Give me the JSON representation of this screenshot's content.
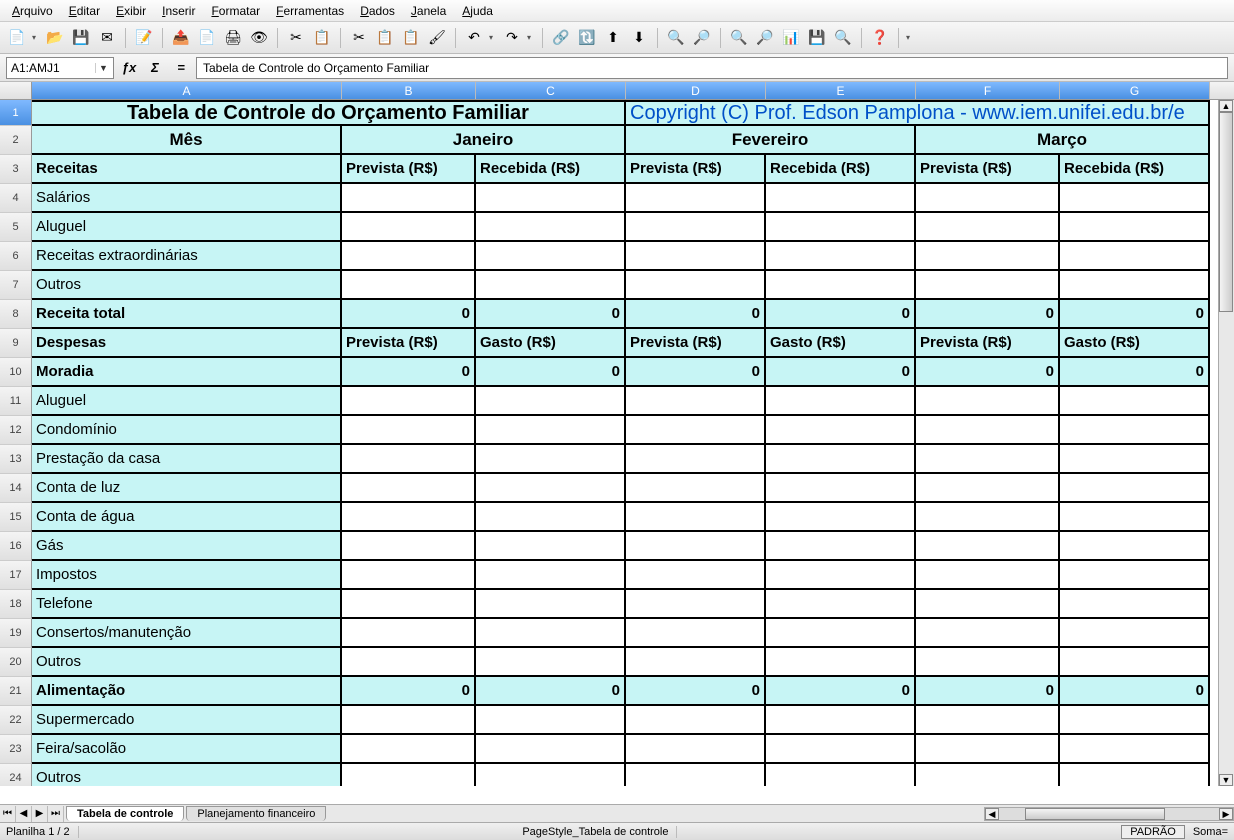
{
  "menu": {
    "items": [
      "Arquivo",
      "Editar",
      "Exibir",
      "Inserir",
      "Formatar",
      "Ferramentas",
      "Dados",
      "Janela",
      "Ajuda"
    ]
  },
  "toolbar_icons": [
    "📄",
    "▾",
    "📂",
    "💾",
    "✉",
    "|",
    "📝",
    "|",
    "📤",
    "📄",
    "🖨",
    "👁",
    "|",
    "✂",
    "📋",
    "|",
    "✂",
    "📋",
    "📋",
    "🖌",
    "|",
    "↶",
    "▾",
    "↷",
    "▾",
    "|",
    "🔗",
    "🔃",
    "⬆",
    "⬇",
    "|",
    "🔍",
    "🔎",
    "|",
    "🔍",
    "🔎",
    "📊",
    "💾",
    "🔍",
    "|",
    "❓",
    "|",
    "▾"
  ],
  "namebox": "A1:AMJ1",
  "formula": "Tabela de Controle do Orçamento Familiar",
  "columns": [
    "A",
    "B",
    "C",
    "D",
    "E",
    "F",
    "G"
  ],
  "col_widths": {
    "A": 310,
    "B": 134,
    "C": 150,
    "D": 140,
    "E": 150,
    "F": 144,
    "G": 150
  },
  "header_bg": "#c7f5f5",
  "selection_bg": "#4a90e2",
  "title_row": {
    "a": "Tabela de Controle do Orçamento Familiar",
    "d": "Copyright (C) Prof. Edson Pamplona - www.iem.unifei.edu.br/e"
  },
  "month_row": {
    "a": "Mês",
    "bc": "Janeiro",
    "de": "Fevereiro",
    "fg": "Março"
  },
  "rows": [
    {
      "n": 3,
      "a": "Receitas",
      "b": "Prevista (R$)",
      "c": "Recebida (R$)",
      "d": "Prevista (R$)",
      "e": "Recebida (R$)",
      "f": "Prevista (R$)",
      "g": "Recebida (R$)",
      "cyan": true,
      "bold": true
    },
    {
      "n": 4,
      "a": "Salários",
      "cyan_a": true
    },
    {
      "n": 5,
      "a": "Aluguel",
      "cyan_a": true
    },
    {
      "n": 6,
      "a": "Receitas extraordinárias",
      "cyan_a": true
    },
    {
      "n": 7,
      "a": "Outros",
      "cyan_a": true
    },
    {
      "n": 8,
      "a": "Receita total",
      "b": "0",
      "c": "0",
      "d": "0",
      "e": "0",
      "f": "0",
      "g": "0",
      "cyan": true,
      "bold": true,
      "right": true
    },
    {
      "n": 9,
      "a": "Despesas",
      "b": "Prevista (R$)",
      "c": "Gasto (R$)",
      "d": "Prevista (R$)",
      "e": "Gasto (R$)",
      "f": "Prevista (R$)",
      "g": "Gasto (R$)",
      "cyan": true,
      "bold": true
    },
    {
      "n": 10,
      "a": "Moradia",
      "b": "0",
      "c": "0",
      "d": "0",
      "e": "0",
      "f": "0",
      "g": "0",
      "cyan": true,
      "bold": true,
      "right": true
    },
    {
      "n": 11,
      "a": "Aluguel",
      "cyan_a": true
    },
    {
      "n": 12,
      "a": "Condomínio",
      "cyan_a": true
    },
    {
      "n": 13,
      "a": "Prestação da casa",
      "cyan_a": true
    },
    {
      "n": 14,
      "a": "Conta de luz",
      "cyan_a": true
    },
    {
      "n": 15,
      "a": "Conta de água",
      "cyan_a": true
    },
    {
      "n": 16,
      "a": "Gás",
      "cyan_a": true
    },
    {
      "n": 17,
      "a": "Impostos",
      "cyan_a": true
    },
    {
      "n": 18,
      "a": "Telefone",
      "cyan_a": true
    },
    {
      "n": 19,
      "a": "Consertos/manutenção",
      "cyan_a": true
    },
    {
      "n": 20,
      "a": "Outros",
      "cyan_a": true
    },
    {
      "n": 21,
      "a": "Alimentação",
      "b": "0",
      "c": "0",
      "d": "0",
      "e": "0",
      "f": "0",
      "g": "0",
      "cyan": true,
      "bold": true,
      "right": true
    },
    {
      "n": 22,
      "a": "Supermercado",
      "cyan_a": true
    },
    {
      "n": 23,
      "a": "Feira/sacolão",
      "cyan_a": true
    },
    {
      "n": 24,
      "a": "Outros",
      "cyan_a": true
    }
  ],
  "sheets": {
    "active": "Tabela de controle",
    "other": "Planejamento financeiro"
  },
  "status": {
    "sheet": "Planilha 1 / 2",
    "style": "PageStyle_Tabela de controle",
    "mode": "PADRÃO",
    "sum": "Soma="
  }
}
